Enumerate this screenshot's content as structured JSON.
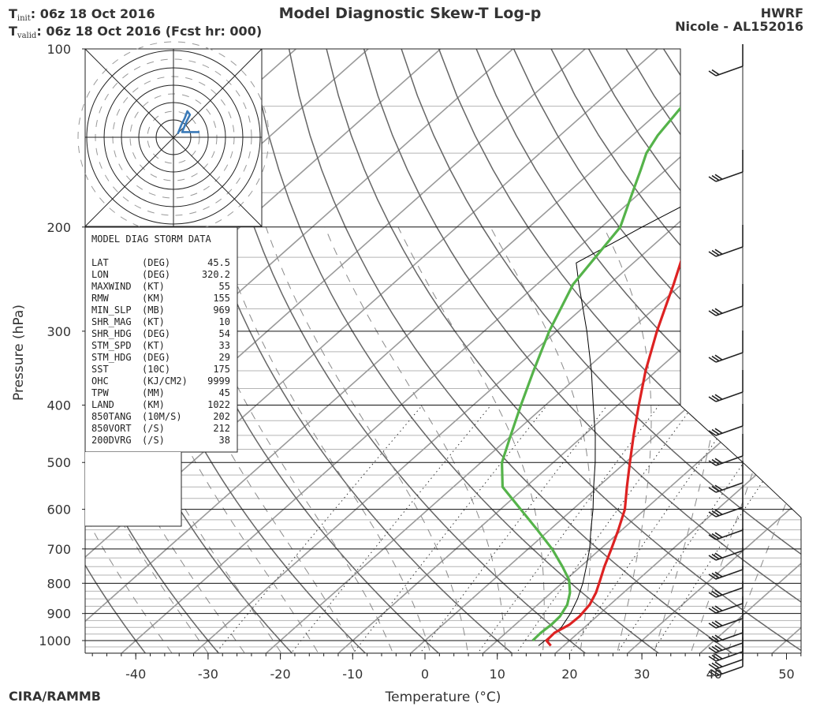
{
  "header": {
    "title": "Model Diagnostic Skew-T Log-p",
    "init_label": "T",
    "init_sub": "init",
    "init_value": ":  06z 18 Oct 2016",
    "valid_label": "T",
    "valid_sub": "valid",
    "valid_value": ": 06z 18 Oct 2016 (Fcst hr: 000)",
    "model": "HWRF",
    "storm": "Nicole - AL152016"
  },
  "footer": {
    "credit": "CIRA/RAMMB"
  },
  "colors": {
    "temperature": "#dd2222",
    "dewpoint": "#55b34a",
    "hodograph": "#3a7ab8"
  },
  "chart_data": {
    "type": "line",
    "title": "Model Diagnostic Skew-T Log-p",
    "xlabel": "Temperature (°C)",
    "ylabel": "Pressure (hPa)",
    "xlim": [
      -47,
      52
    ],
    "ylim": [
      1050,
      100
    ],
    "x_ticks": [
      -40,
      -30,
      -20,
      -10,
      0,
      10,
      20,
      30,
      40,
      50
    ],
    "x_tick_labels": [
      "-40",
      "-30",
      "-20",
      "-10",
      "0",
      "10",
      "20",
      "30",
      "40",
      "50"
    ],
    "pressure_ticks": [
      100,
      200,
      300,
      400,
      500,
      600,
      700,
      800,
      900,
      1000
    ],
    "pressure_tick_labels": [
      "100",
      "200",
      "300",
      "400",
      "500",
      "600",
      "700",
      "800",
      "900",
      "1000"
    ],
    "series": [
      {
        "name": "Temperature",
        "color": "#dd2222",
        "points": [
          [
            1020,
            18.2
          ],
          [
            1000,
            16.8
          ],
          [
            970,
            16.7
          ],
          [
            940,
            17.5
          ],
          [
            910,
            17.6
          ],
          [
            870,
            17.2
          ],
          [
            830,
            16.2
          ],
          [
            790,
            14.8
          ],
          [
            750,
            13.3
          ],
          [
            700,
            11.5
          ],
          [
            650,
            9.5
          ],
          [
            600,
            7.2
          ],
          [
            550,
            4.0
          ],
          [
            500,
            0.6
          ],
          [
            450,
            -3.1
          ],
          [
            400,
            -7.1
          ],
          [
            350,
            -11.5
          ],
          [
            300,
            -16.1
          ],
          [
            270,
            -19.0
          ],
          [
            250,
            -21.1
          ],
          [
            225,
            -24.1
          ],
          [
            200,
            -27.3
          ],
          [
            180,
            -29.7
          ],
          [
            160,
            -32.4
          ],
          [
            140,
            -35.4
          ],
          [
            120,
            -39.0
          ],
          [
            100,
            -43.4
          ]
        ]
      },
      {
        "name": "Dewpoint",
        "color": "#55b34a",
        "points": [
          [
            1000,
            14.9
          ],
          [
            970,
            14.8
          ],
          [
            940,
            15.0
          ],
          [
            910,
            14.9
          ],
          [
            870,
            14.1
          ],
          [
            830,
            12.6
          ],
          [
            790,
            10.5
          ],
          [
            750,
            7.5
          ],
          [
            700,
            3.3
          ],
          [
            650,
            -1.7
          ],
          [
            600,
            -7.2
          ],
          [
            550,
            -13.2
          ],
          [
            500,
            -17.1
          ],
          [
            450,
            -20.1
          ],
          [
            400,
            -23.4
          ],
          [
            350,
            -27.0
          ],
          [
            300,
            -31.0
          ],
          [
            250,
            -35.0
          ],
          [
            200,
            -37.4
          ],
          [
            180,
            -40.3
          ],
          [
            160,
            -43.5
          ],
          [
            150,
            -45.3
          ],
          [
            140,
            -46.5
          ],
          [
            120,
            -48.1
          ],
          [
            100,
            -49.6
          ]
        ]
      },
      {
        "name": "Parcel",
        "color": "#000000",
        "points": [
          [
            1020,
            16.5
          ],
          [
            950,
            16.8
          ],
          [
            900,
            15.9
          ],
          [
            850,
            14.6
          ],
          [
            800,
            12.9
          ],
          [
            750,
            10.8
          ],
          [
            700,
            8.5
          ],
          [
            650,
            5.7
          ],
          [
            600,
            2.8
          ],
          [
            550,
            -0.6
          ],
          [
            500,
            -4.2
          ],
          [
            450,
            -8.4
          ],
          [
            400,
            -13.4
          ],
          [
            350,
            -19.0
          ],
          [
            300,
            -25.8
          ],
          [
            250,
            -34.2
          ],
          [
            230,
            -37.9
          ],
          [
            210,
            -35.6
          ],
          [
            200,
            -34.4
          ],
          [
            150,
            -26.3
          ],
          [
            100,
            -15.8
          ]
        ]
      }
    ],
    "wind_barbs_note": "wind barbs plotted along right side at each pressure level",
    "hodograph": {
      "ring_labels": [],
      "trace": [
        [
          0.5,
          0.2
        ],
        [
          0.9,
          0.7
        ],
        [
          1.3,
          1.1
        ],
        [
          1.6,
          1.5
        ],
        [
          1.9,
          1.3
        ],
        [
          1.5,
          0.9
        ],
        [
          1.0,
          0.3
        ],
        [
          2.2,
          0.3
        ],
        [
          3.0,
          0.3
        ]
      ]
    }
  },
  "storm_data": {
    "title": "MODEL DIAG STORM DATA",
    "rows": [
      {
        "name": "LAT",
        "unit": "(DEG)",
        "value": "45.5"
      },
      {
        "name": "LON",
        "unit": "(DEG)",
        "value": "320.2"
      },
      {
        "name": "MAXWIND",
        "unit": "(KT)",
        "value": "55"
      },
      {
        "name": "RMW",
        "unit": "(KM)",
        "value": "155"
      },
      {
        "name": "MIN_SLP",
        "unit": "(MB)",
        "value": "969"
      },
      {
        "name": "SHR_MAG",
        "unit": "(KT)",
        "value": "10"
      },
      {
        "name": "SHR_HDG",
        "unit": "(DEG)",
        "value": "54"
      },
      {
        "name": "STM_SPD",
        "unit": "(KT)",
        "value": "33"
      },
      {
        "name": "STM_HDG",
        "unit": "(DEG)",
        "value": "29"
      },
      {
        "name": "SST",
        "unit": "(10C)",
        "value": "175"
      },
      {
        "name": "OHC",
        "unit": "(KJ/CM2)",
        "value": "9999"
      },
      {
        "name": "TPW",
        "unit": "(MM)",
        "value": "45"
      },
      {
        "name": "LAND",
        "unit": "(KM)",
        "value": "1022"
      },
      {
        "name": "850TANG",
        "unit": "(10M/S)",
        "value": "202"
      },
      {
        "name": "850VORT",
        "unit": "(/S)",
        "value": "212"
      },
      {
        "name": "200DVRG",
        "unit": "(/S)",
        "value": "38"
      }
    ]
  }
}
